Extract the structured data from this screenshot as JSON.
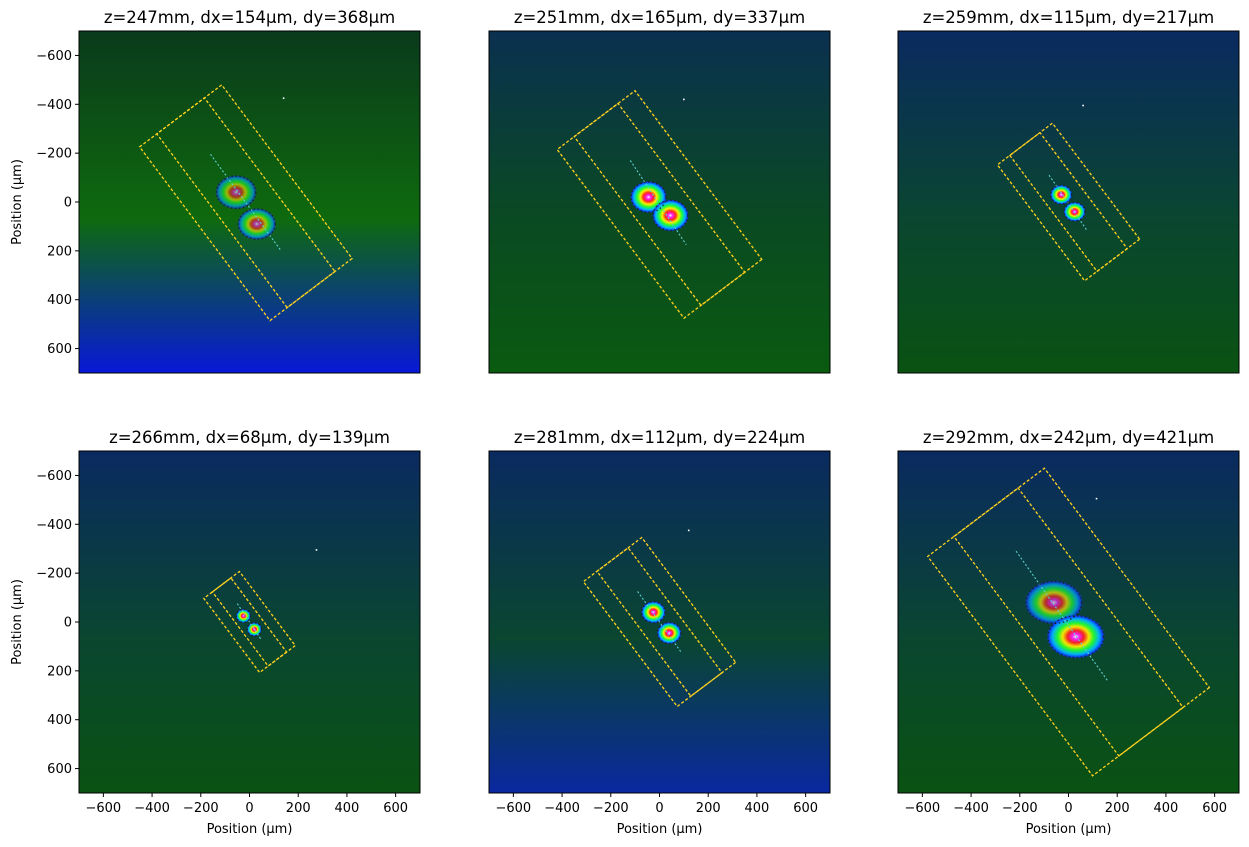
{
  "chart_data": [
    {
      "type": "heatmap",
      "title": "z=247mm, dx=154µm, dy=368µm",
      "z_mm": 247,
      "dx_um": 154,
      "dy_um": 368,
      "xlabel": "",
      "ylabel": "Position (µm)",
      "xlim": [
        -700,
        700
      ],
      "ylim": [
        700,
        -700
      ],
      "xticks": [],
      "yticks": [
        -600,
        -400,
        -200,
        0,
        200,
        400,
        600
      ],
      "background": {
        "top": "#0a3a1c",
        "middle": "#0e6a0e",
        "bottom": "#0818d8"
      },
      "blobs": [
        {
          "x": -55,
          "y": -40,
          "rx": 85,
          "ry": 70,
          "peak": 0.6
        },
        {
          "x": 30,
          "y": 90,
          "rx": 80,
          "ry": 65,
          "peak": 0.65
        }
      ],
      "outer_rect": {
        "center": [
          -15,
          3
        ],
        "angle_deg": -53,
        "length": 890,
        "width": 422
      },
      "inner_rect": {
        "center": [
          -15,
          3
        ],
        "angle_deg": -53,
        "length": 890,
        "width": 245
      },
      "cross_line": {
        "from": [
          -160,
          -195
        ],
        "to": [
          130,
          200
        ]
      },
      "hot_pixel": [
        140,
        -425
      ]
    },
    {
      "type": "heatmap",
      "title": "z=251mm, dx=165µm, dy=337µm",
      "z_mm": 251,
      "dx_um": 165,
      "dy_um": 337,
      "xlabel": "",
      "ylabel": "",
      "xlim": [
        -700,
        700
      ],
      "ylim": [
        700,
        -700
      ],
      "xticks": [],
      "yticks": [],
      "background": {
        "top": "#0a3050",
        "middle": "#0a4a22",
        "bottom": "#0a5a10"
      },
      "blobs": [
        {
          "x": -45,
          "y": -20,
          "rx": 75,
          "ry": 65,
          "peak": 1.0
        },
        {
          "x": 45,
          "y": 55,
          "rx": 75,
          "ry": 65,
          "peak": 1.0
        }
      ],
      "outer_rect": {
        "center": [
          0,
          10
        ],
        "angle_deg": -53,
        "length": 865,
        "width": 400
      },
      "inner_rect": {
        "center": [
          0,
          10
        ],
        "angle_deg": -53,
        "length": 865,
        "width": 225
      },
      "cross_line": {
        "from": [
          -120,
          -170
        ],
        "to": [
          110,
          175
        ]
      },
      "hot_pixel": [
        100,
        -420
      ]
    },
    {
      "type": "heatmap",
      "title": "z=259mm, dx=115µm, dy=217µm",
      "z_mm": 259,
      "dx_um": 115,
      "dy_um": 217,
      "xlabel": "",
      "ylabel": "",
      "xlim": [
        -700,
        700
      ],
      "ylim": [
        700,
        -700
      ],
      "xticks": [],
      "yticks": [],
      "background": {
        "top": "#0a2a60",
        "middle": "#0a4630",
        "bottom": "#0a5212"
      },
      "blobs": [
        {
          "x": -30,
          "y": -30,
          "rx": 45,
          "ry": 40,
          "peak": 1.0
        },
        {
          "x": 25,
          "y": 40,
          "rx": 45,
          "ry": 40,
          "peak": 1.0
        }
      ],
      "outer_rect": {
        "center": [
          0,
          0
        ],
        "angle_deg": -53,
        "length": 595,
        "width": 283
      },
      "inner_rect": {
        "center": [
          0,
          0
        ],
        "angle_deg": -53,
        "length": 595,
        "width": 155
      },
      "cross_line": {
        "from": [
          -80,
          -110
        ],
        "to": [
          75,
          115
        ]
      },
      "hot_pixel": [
        60,
        -395
      ]
    },
    {
      "type": "heatmap",
      "title": "z=266mm, dx=68µm, dy=139µm",
      "z_mm": 266,
      "dx_um": 68,
      "dy_um": 139,
      "xlabel": "Position (µm)",
      "ylabel": "Position (µm)",
      "xlim": [
        -700,
        700
      ],
      "ylim": [
        700,
        -700
      ],
      "xticks": [
        -600,
        -400,
        -200,
        0,
        200,
        400,
        600
      ],
      "yticks": [
        -600,
        -400,
        -200,
        0,
        200,
        400,
        600
      ],
      "background": {
        "top": "#0a2a60",
        "middle": "#0a4630",
        "bottom": "#0a5212"
      },
      "blobs": [
        {
          "x": -25,
          "y": -25,
          "rx": 30,
          "ry": 28,
          "peak": 1.0
        },
        {
          "x": 20,
          "y": 30,
          "rx": 30,
          "ry": 28,
          "peak": 1.0
        }
      ],
      "outer_rect": {
        "center": [
          0,
          0
        ],
        "angle_deg": -53,
        "length": 380,
        "width": 183
      },
      "inner_rect": {
        "center": [
          0,
          0
        ],
        "angle_deg": -53,
        "length": 380,
        "width": 95
      },
      "cross_line": {
        "from": [
          -50,
          -75
        ],
        "to": [
          50,
          75
        ]
      },
      "hot_pixel": [
        275,
        -295
      ]
    },
    {
      "type": "heatmap",
      "title": "z=281mm, dx=112µm, dy=224µm",
      "z_mm": 281,
      "dx_um": 112,
      "dy_um": 224,
      "xlabel": "Position (µm)",
      "ylabel": "",
      "xlim": [
        -700,
        700
      ],
      "ylim": [
        700,
        -700
      ],
      "xticks": [
        -600,
        -400,
        -200,
        0,
        200,
        400,
        600
      ],
      "yticks": [],
      "background": {
        "top": "#0a2a60",
        "middle": "#0a4630",
        "bottom": "#0a28a0"
      },
      "blobs": [
        {
          "x": -25,
          "y": -40,
          "rx": 50,
          "ry": 45,
          "peak": 1.0
        },
        {
          "x": 40,
          "y": 45,
          "rx": 50,
          "ry": 45,
          "peak": 1.0
        }
      ],
      "outer_rect": {
        "center": [
          0,
          0
        ],
        "angle_deg": -53,
        "length": 640,
        "width": 300
      },
      "inner_rect": {
        "center": [
          0,
          0
        ],
        "angle_deg": -53,
        "length": 640,
        "width": 160
      },
      "cross_line": {
        "from": [
          -90,
          -125
        ],
        "to": [
          90,
          125
        ]
      },
      "hot_pixel": [
        120,
        -375
      ]
    },
    {
      "type": "heatmap",
      "title": "z=292mm, dx=242µm, dy=421µm",
      "z_mm": 292,
      "dx_um": 242,
      "dy_um": 421,
      "xlabel": "Position (µm)",
      "ylabel": "",
      "xlim": [
        -700,
        700
      ],
      "ylim": [
        700,
        -700
      ],
      "xticks": [
        -600,
        -400,
        -200,
        0,
        200,
        400,
        600
      ],
      "yticks": [],
      "background": {
        "top": "#0a2a60",
        "middle": "#0a4630",
        "bottom": "#0a5212"
      },
      "blobs": [
        {
          "x": -60,
          "y": -80,
          "rx": 120,
          "ry": 90,
          "peak": 0.7
        },
        {
          "x": 30,
          "y": 60,
          "rx": 120,
          "ry": 90,
          "peak": 0.95
        }
      ],
      "outer_rect": {
        "center": [
          0,
          0
        ],
        "angle_deg": -53,
        "length": 1125,
        "width": 600
      },
      "inner_rect": {
        "center": [
          0,
          0
        ],
        "angle_deg": -53,
        "length": 1125,
        "width": 330
      },
      "cross_line": {
        "from": [
          -215,
          -290
        ],
        "to": [
          160,
          240
        ]
      },
      "hot_pixel": [
        115,
        -505
      ]
    }
  ]
}
